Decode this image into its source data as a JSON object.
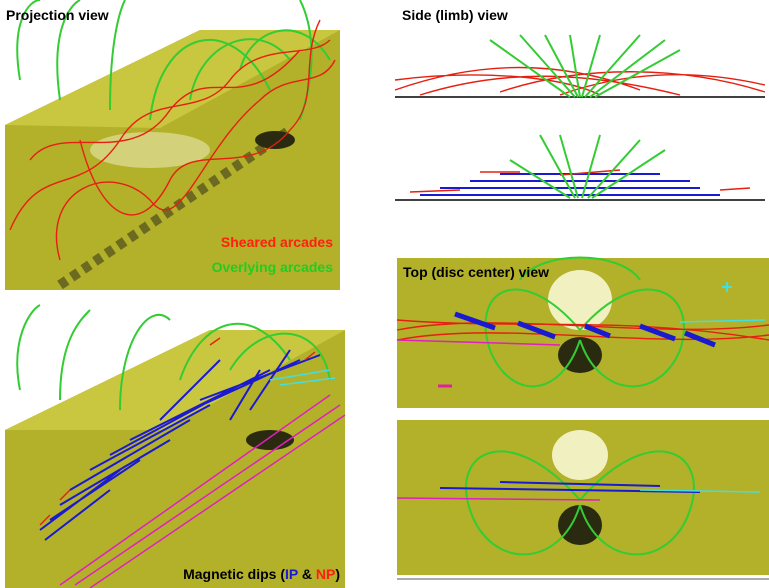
{
  "panels": {
    "projection": {
      "title": "Projection view",
      "legend": [
        "Sheared arcades",
        "Overlying arcades"
      ]
    },
    "dips": {
      "caption": [
        "Magnetic dips (",
        "IP",
        " & ",
        "NP",
        ")"
      ]
    },
    "side": {
      "title": "Side (limb) view"
    },
    "top": {
      "title": "Top (disc center) view"
    }
  }
}
